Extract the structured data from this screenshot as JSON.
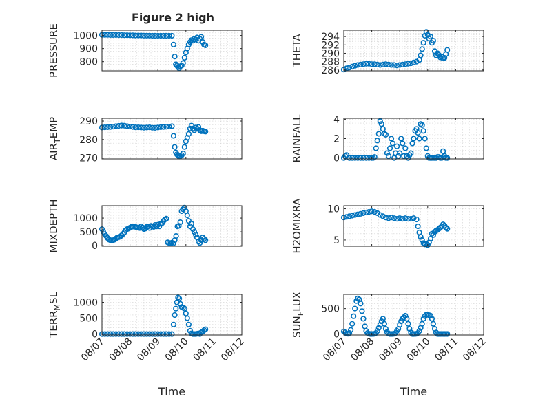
{
  "figure_title": "Figure 2 high",
  "colors": {
    "marker": "#0072BD",
    "axis": "#262626",
    "grid": "#d0d0d0",
    "background": "#ffffff"
  },
  "chart_data": [
    {
      "type": "scatter",
      "ylabel": "PRESSURE",
      "ylim": [
        730,
        1040
      ],
      "yticks": [
        800,
        900,
        1000
      ],
      "xlim": [
        0,
        5
      ],
      "xticks": [
        "08/07",
        "08/08",
        "08/09",
        "08/10",
        "08/11",
        "08/12"
      ],
      "grid": true,
      "x": [
        0,
        0.1,
        0.2,
        0.3,
        0.4,
        0.5,
        0.6,
        0.7,
        0.8,
        0.9,
        1,
        1.1,
        1.2,
        1.3,
        1.4,
        1.5,
        1.6,
        1.7,
        1.8,
        1.9,
        2,
        2.1,
        2.2,
        2.3,
        2.4,
        2.5,
        2.56,
        2.6,
        2.64,
        2.68,
        2.72,
        2.76,
        2.8,
        2.85,
        2.9,
        2.95,
        3,
        3.05,
        3.1,
        3.15,
        3.2,
        3.25,
        3.3,
        3.35,
        3.4,
        3.45,
        3.5,
        3.55,
        3.6,
        3.65,
        3.7
      ],
      "y": [
        1005,
        1005,
        1005,
        1004,
        1004,
        1004,
        1003,
        1003,
        1002,
        1002,
        1001,
        1001,
        1000,
        1000,
        1000,
        999,
        999,
        999,
        998,
        998,
        998,
        998,
        998,
        998,
        998,
        998,
        930,
        840,
        780,
        770,
        760,
        750,
        765,
        770,
        790,
        830,
        870,
        900,
        930,
        950,
        965,
        960,
        975,
        970,
        985,
        960,
        975,
        990,
        950,
        930,
        925
      ]
    },
    {
      "type": "scatter",
      "ylabel": "THETA",
      "ylim": [
        285.8,
        295.5
      ],
      "yticks": [
        286,
        288,
        290,
        292,
        294
      ],
      "xlim": [
        0,
        5
      ],
      "xticks": [
        "08/07",
        "08/08",
        "08/09",
        "08/10",
        "08/11",
        "08/12"
      ],
      "grid": true,
      "x": [
        0,
        0.1,
        0.2,
        0.3,
        0.4,
        0.5,
        0.6,
        0.7,
        0.8,
        0.9,
        1,
        1.1,
        1.2,
        1.3,
        1.4,
        1.5,
        1.6,
        1.7,
        1.8,
        1.9,
        2,
        2.1,
        2.2,
        2.3,
        2.4,
        2.5,
        2.6,
        2.7,
        2.75,
        2.8,
        2.85,
        2.9,
        2.95,
        3,
        3.05,
        3.1,
        3.15,
        3.2,
        3.25,
        3.3,
        3.35,
        3.4,
        3.45,
        3.5,
        3.55,
        3.6,
        3.65,
        3.7
      ],
      "y": [
        286.1,
        286.4,
        286.6,
        286.8,
        287,
        287.2,
        287.3,
        287.4,
        287.5,
        287.5,
        287.4,
        287.4,
        287.3,
        287.2,
        287.3,
        287.4,
        287.3,
        287.2,
        287.2,
        287.1,
        287.2,
        287.3,
        287.4,
        287.5,
        287.6,
        287.8,
        288,
        288.4,
        289.5,
        291,
        292.5,
        294.2,
        295.1,
        294.4,
        293.5,
        294,
        292.5,
        293,
        290.5,
        289.5,
        290,
        289.6,
        289,
        289.2,
        288.8,
        288.9,
        289.8,
        290.8
      ]
    },
    {
      "type": "scatter",
      "ylabel": "AIR_TEMP",
      "ylim": [
        269.5,
        291.5
      ],
      "yticks": [
        270,
        280,
        290
      ],
      "xlim": [
        0,
        5
      ],
      "xticks": [
        "08/07",
        "08/08",
        "08/09",
        "08/10",
        "08/11",
        "08/12"
      ],
      "grid": true,
      "x": [
        0,
        0.1,
        0.2,
        0.3,
        0.4,
        0.5,
        0.6,
        0.7,
        0.8,
        0.9,
        1,
        1.1,
        1.2,
        1.3,
        1.4,
        1.5,
        1.6,
        1.7,
        1.8,
        1.9,
        2,
        2.1,
        2.2,
        2.3,
        2.4,
        2.5,
        2.56,
        2.6,
        2.64,
        2.68,
        2.72,
        2.76,
        2.8,
        2.85,
        2.9,
        2.95,
        3,
        3.05,
        3.1,
        3.15,
        3.2,
        3.25,
        3.3,
        3.35,
        3.4,
        3.45,
        3.5,
        3.55,
        3.6,
        3.65,
        3.7
      ],
      "y": [
        286.5,
        286.6,
        286.7,
        286.8,
        287,
        287.2,
        287.4,
        287.6,
        287.5,
        287.2,
        287,
        286.8,
        286.6,
        286.6,
        286.5,
        286.4,
        286.5,
        286.6,
        286.4,
        286.3,
        286.5,
        286.7,
        286.8,
        286.9,
        287,
        287.2,
        282,
        276,
        273,
        272,
        271.5,
        270.8,
        271,
        271.5,
        272.5,
        276,
        279,
        281,
        283,
        286,
        287.5,
        286,
        285,
        286.5,
        286,
        286.8,
        285,
        284.5,
        284.8,
        284.5,
        284.3
      ]
    },
    {
      "type": "scatter",
      "ylabel": "RAINFALL",
      "ylim": [
        -0.1,
        4.1
      ],
      "yticks": [
        0,
        2,
        4
      ],
      "xlim": [
        0,
        5
      ],
      "xticks": [
        "08/07",
        "08/08",
        "08/09",
        "08/10",
        "08/11",
        "08/12"
      ],
      "grid": true,
      "x": [
        0,
        0.05,
        0.1,
        0.2,
        0.3,
        0.4,
        0.5,
        0.6,
        0.7,
        0.8,
        0.9,
        1,
        1.05,
        1.1,
        1.15,
        1.2,
        1.25,
        1.3,
        1.35,
        1.4,
        1.45,
        1.5,
        1.55,
        1.6,
        1.65,
        1.7,
        1.75,
        1.8,
        1.85,
        1.9,
        1.95,
        2,
        2.05,
        2.1,
        2.15,
        2.2,
        2.25,
        2.3,
        2.35,
        2.4,
        2.45,
        2.5,
        2.55,
        2.6,
        2.65,
        2.7,
        2.75,
        2.8,
        2.85,
        2.9,
        2.95,
        3,
        3.05,
        3.1,
        3.15,
        3.2,
        3.25,
        3.3,
        3.35,
        3.4,
        3.45,
        3.5,
        3.55,
        3.6,
        3.65,
        3.7
      ],
      "y": [
        0,
        0.2,
        0.3,
        0,
        0,
        0,
        0,
        0,
        0,
        0,
        0,
        0,
        0,
        0.1,
        1,
        1.8,
        2.5,
        3.8,
        3.5,
        3,
        2.5,
        2.4,
        0.5,
        0.2,
        1,
        2,
        1.5,
        0,
        0.5,
        1.2,
        0.2,
        0.5,
        2,
        1.5,
        0.2,
        1,
        0.2,
        0,
        0.3,
        0.5,
        1.5,
        2,
        2.8,
        3,
        2.6,
        2,
        3.5,
        3.4,
        2.8,
        2,
        1,
        0.2,
        0,
        0,
        0,
        0,
        0,
        0,
        0.1,
        0.1,
        0,
        0,
        0.7,
        0.2,
        0,
        0
      ]
    },
    {
      "type": "scatter",
      "ylabel": "MIXDEPTH",
      "ylim": [
        -20,
        1450
      ],
      "yticks": [
        0,
        500,
        1000
      ],
      "xlim": [
        0,
        5
      ],
      "xticks": [
        "08/07",
        "08/08",
        "08/09",
        "08/10",
        "08/11",
        "08/12"
      ],
      "grid": true,
      "x": [
        0,
        0.05,
        0.1,
        0.15,
        0.2,
        0.25,
        0.3,
        0.35,
        0.4,
        0.45,
        0.5,
        0.55,
        0.6,
        0.65,
        0.7,
        0.75,
        0.8,
        0.85,
        0.9,
        0.95,
        1,
        1.05,
        1.1,
        1.15,
        1.2,
        1.25,
        1.3,
        1.35,
        1.4,
        1.45,
        1.5,
        1.55,
        1.6,
        1.65,
        1.7,
        1.75,
        1.8,
        1.85,
        1.9,
        1.95,
        2,
        2.05,
        2.1,
        2.15,
        2.2,
        2.25,
        2.3,
        2.35,
        2.4,
        2.45,
        2.5,
        2.55,
        2.6,
        2.65,
        2.7,
        2.75,
        2.8,
        2.85,
        2.9,
        2.95,
        3,
        3.05,
        3.1,
        3.15,
        3.2,
        3.25,
        3.3,
        3.35,
        3.4,
        3.45,
        3.5,
        3.55,
        3.6,
        3.65,
        3.7
      ],
      "y": [
        600,
        500,
        420,
        350,
        280,
        220,
        200,
        180,
        200,
        220,
        260,
        300,
        310,
        330,
        370,
        420,
        480,
        560,
        600,
        620,
        650,
        680,
        690,
        700,
        680,
        660,
        650,
        640,
        700,
        660,
        600,
        620,
        680,
        700,
        640,
        720,
        700,
        680,
        750,
        700,
        760,
        700,
        800,
        820,
        900,
        950,
        980,
        120,
        100,
        90,
        110,
        80,
        200,
        350,
        700,
        720,
        850,
        1250,
        1320,
        1380,
        1250,
        1100,
        900,
        700,
        800,
        600,
        500,
        400,
        300,
        150,
        100,
        200,
        300,
        250,
        200
      ]
    },
    {
      "type": "scatter",
      "ylabel": "H2OMIXRA",
      "ylim": [
        4,
        10.5
      ],
      "yticks": [
        5,
        10
      ],
      "xlim": [
        0,
        5
      ],
      "xticks": [
        "08/07",
        "08/08",
        "08/09",
        "08/10",
        "08/11",
        "08/12"
      ],
      "grid": true,
      "x": [
        0,
        0.1,
        0.2,
        0.3,
        0.4,
        0.5,
        0.6,
        0.7,
        0.8,
        0.9,
        1,
        1.1,
        1.2,
        1.3,
        1.4,
        1.5,
        1.6,
        1.7,
        1.8,
        1.9,
        2,
        2.1,
        2.2,
        2.3,
        2.4,
        2.5,
        2.6,
        2.65,
        2.7,
        2.75,
        2.8,
        2.85,
        2.9,
        2.95,
        3,
        3.05,
        3.1,
        3.15,
        3.2,
        3.25,
        3.3,
        3.35,
        3.4,
        3.45,
        3.5,
        3.55,
        3.6,
        3.65,
        3.7
      ],
      "y": [
        8.6,
        8.7,
        8.8,
        8.9,
        9,
        9.1,
        9.2,
        9.3,
        9.4,
        9.5,
        9.6,
        9.5,
        9.3,
        9.0,
        8.8,
        8.6,
        8.5,
        8.6,
        8.5,
        8.4,
        8.5,
        8.4,
        8.5,
        8.4,
        8.4,
        8.5,
        8.3,
        7.2,
        6.2,
        5.5,
        5.0,
        4.5,
        4.3,
        4.4,
        4.2,
        4.6,
        5.2,
        6.0,
        5.8,
        6.3,
        6.5,
        6.6,
        6.8,
        7.0,
        7.2,
        7.5,
        7.3,
        7.0,
        6.8
      ]
    },
    {
      "type": "scatter",
      "ylabel": "TERR_MSL",
      "ylim": [
        -30,
        1250
      ],
      "yticks": [
        0,
        500,
        1000
      ],
      "xlim": [
        0,
        5
      ],
      "xticks": [
        "08/07",
        "08/08",
        "08/09",
        "08/10",
        "08/11",
        "08/12"
      ],
      "grid": true,
      "x": [
        0,
        0.1,
        0.2,
        0.3,
        0.4,
        0.5,
        0.6,
        0.7,
        0.8,
        0.9,
        1,
        1.1,
        1.2,
        1.3,
        1.4,
        1.5,
        1.6,
        1.7,
        1.8,
        1.9,
        2,
        2.1,
        2.2,
        2.3,
        2.4,
        2.5,
        2.56,
        2.6,
        2.64,
        2.68,
        2.72,
        2.76,
        2.8,
        2.85,
        2.9,
        2.95,
        3,
        3.05,
        3.1,
        3.15,
        3.2,
        3.25,
        3.3,
        3.35,
        3.4,
        3.45,
        3.5,
        3.55,
        3.6,
        3.65,
        3.7
      ],
      "y": [
        0,
        0,
        0,
        0,
        0,
        0,
        0,
        0,
        0,
        0,
        0,
        0,
        0,
        0,
        0,
        0,
        0,
        0,
        0,
        0,
        0,
        0,
        0,
        0,
        0,
        0,
        300,
        600,
        800,
        1000,
        1150,
        1120,
        950,
        850,
        830,
        800,
        650,
        500,
        300,
        100,
        20,
        0,
        0,
        0,
        10,
        20,
        0,
        50,
        80,
        120,
        150
      ]
    },
    {
      "type": "scatter",
      "ylabel": "SUN_FLUX",
      "ylim": [
        -20,
        780
      ],
      "yticks": [
        0,
        500
      ],
      "xlim": [
        0,
        5
      ],
      "xticks": [
        "08/07",
        "08/08",
        "08/09",
        "08/10",
        "08/11",
        "08/12"
      ],
      "grid": true,
      "x": [
        0,
        0.05,
        0.1,
        0.15,
        0.2,
        0.25,
        0.3,
        0.35,
        0.4,
        0.45,
        0.5,
        0.55,
        0.6,
        0.65,
        0.7,
        0.75,
        0.8,
        0.85,
        0.9,
        0.95,
        1,
        1.05,
        1.1,
        1.15,
        1.2,
        1.25,
        1.3,
        1.35,
        1.4,
        1.45,
        1.5,
        1.55,
        1.6,
        1.65,
        1.7,
        1.75,
        1.8,
        1.85,
        1.9,
        1.95,
        2,
        2.05,
        2.1,
        2.15,
        2.2,
        2.25,
        2.3,
        2.35,
        2.4,
        2.45,
        2.5,
        2.55,
        2.6,
        2.65,
        2.7,
        2.75,
        2.8,
        2.85,
        2.9,
        2.95,
        3,
        3.05,
        3.1,
        3.15,
        3.2,
        3.25,
        3.3,
        3.35,
        3.4,
        3.45,
        3.5,
        3.55,
        3.6,
        3.65,
        3.7
      ],
      "y": [
        50,
        30,
        10,
        5,
        20,
        80,
        200,
        350,
        500,
        650,
        700,
        680,
        600,
        450,
        300,
        150,
        60,
        20,
        5,
        0,
        0,
        0,
        5,
        20,
        60,
        120,
        180,
        250,
        300,
        200,
        100,
        40,
        10,
        0,
        0,
        0,
        5,
        20,
        60,
        100,
        180,
        250,
        300,
        330,
        360,
        300,
        200,
        100,
        30,
        0,
        0,
        0,
        5,
        20,
        60,
        120,
        200,
        300,
        350,
        380,
        380,
        370,
        360,
        300,
        200,
        100,
        30,
        0,
        0,
        0,
        0,
        0,
        0,
        0,
        0
      ]
    }
  ]
}
